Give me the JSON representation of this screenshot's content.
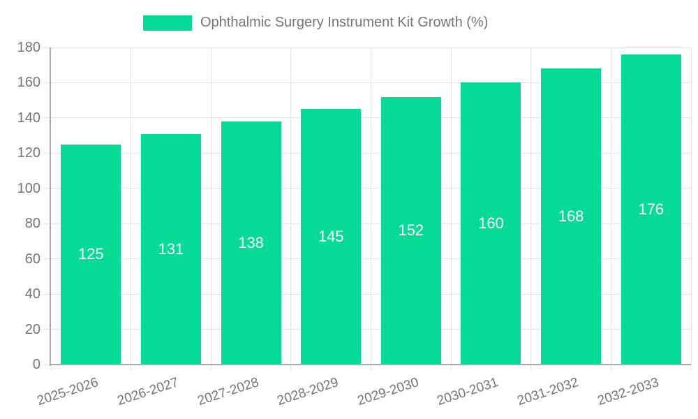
{
  "legend": {
    "label": "Ophthalmic Surgery Instrument Kit Growth (%)"
  },
  "chart_data": {
    "type": "bar",
    "title": "Ophthalmic Surgery Instrument Kit Growth (%)",
    "series": [
      {
        "name": "Ophthalmic Surgery Instrument Kit Growth (%)",
        "values": [
          125,
          131,
          138,
          145,
          152,
          160,
          168,
          176
        ]
      }
    ],
    "categories": [
      "2025-2026",
      "2026-2027",
      "2027-2028",
      "2028-2029",
      "2029-2030",
      "2030-2031",
      "2031-2032",
      "2032-2033"
    ],
    "xlabel": "",
    "ylabel": "",
    "ylim": [
      0,
      180
    ],
    "ytick_step": 20,
    "yticks": [
      0,
      20,
      40,
      60,
      80,
      100,
      120,
      140,
      160,
      180
    ],
    "grid": true,
    "legend_position": "top",
    "value_labels_position": "inside-center",
    "colors": {
      "bar": "#05da96",
      "value_label": "#ffffff",
      "axis_text": "#757575",
      "grid_line": "#e3e3e3",
      "axis_line": "#a9a9a9",
      "background": "#ffffff"
    }
  }
}
